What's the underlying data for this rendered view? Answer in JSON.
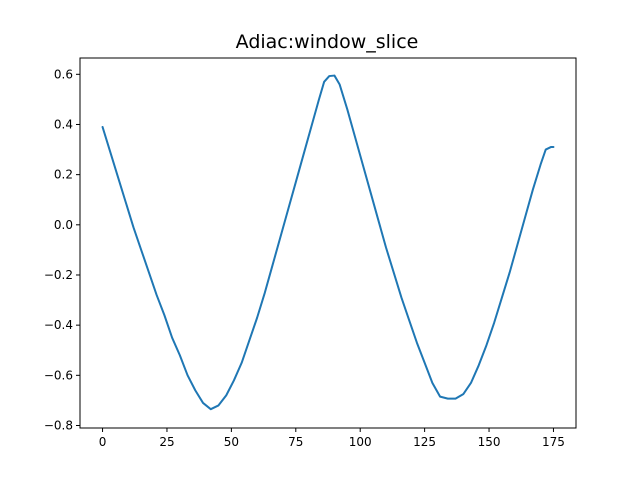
{
  "chart_data": {
    "type": "line",
    "title": "Adiac:window_slice",
    "xlabel": "",
    "ylabel": "",
    "xlim": [
      -8.75,
      183.75
    ],
    "ylim": [
      -0.81,
      0.665
    ],
    "grid": false,
    "x_ticks": [
      0,
      25,
      50,
      75,
      100,
      125,
      150,
      175
    ],
    "x_tick_labels": [
      "0",
      "25",
      "50",
      "75",
      "100",
      "125",
      "150",
      "175"
    ],
    "y_ticks": [
      -0.8,
      -0.6,
      -0.4,
      -0.2,
      0.0,
      0.2,
      0.4,
      0.6
    ],
    "y_tick_labels": [
      "−0.8",
      "−0.6",
      "−0.4",
      "−0.2",
      "0.0",
      "0.2",
      "0.4",
      "0.6"
    ],
    "series": [
      {
        "color": "#1f77b4",
        "points": [
          [
            0,
            0.39
          ],
          [
            3,
            0.29
          ],
          [
            6,
            0.19
          ],
          [
            9,
            0.09
          ],
          [
            12,
            -0.01
          ],
          [
            15,
            -0.1
          ],
          [
            18,
            -0.19
          ],
          [
            21,
            -0.28
          ],
          [
            24,
            -0.36
          ],
          [
            27,
            -0.45
          ],
          [
            30,
            -0.52
          ],
          [
            33,
            -0.6
          ],
          [
            36,
            -0.66
          ],
          [
            39,
            -0.71
          ],
          [
            42,
            -0.735
          ],
          [
            45,
            -0.72
          ],
          [
            48,
            -0.68
          ],
          [
            51,
            -0.62
          ],
          [
            54,
            -0.55
          ],
          [
            57,
            -0.46
          ],
          [
            60,
            -0.37
          ],
          [
            63,
            -0.27
          ],
          [
            66,
            -0.16
          ],
          [
            69,
            -0.05
          ],
          [
            72,
            0.06
          ],
          [
            75,
            0.17
          ],
          [
            78,
            0.28
          ],
          [
            81,
            0.39
          ],
          [
            84,
            0.5
          ],
          [
            86,
            0.57
          ],
          [
            88,
            0.593
          ],
          [
            90,
            0.595
          ],
          [
            92,
            0.56
          ],
          [
            95,
            0.46
          ],
          [
            98,
            0.35
          ],
          [
            101,
            0.24
          ],
          [
            104,
            0.13
          ],
          [
            107,
            0.02
          ],
          [
            110,
            -0.09
          ],
          [
            113,
            -0.19
          ],
          [
            116,
            -0.29
          ],
          [
            119,
            -0.38
          ],
          [
            122,
            -0.47
          ],
          [
            125,
            -0.55
          ],
          [
            128,
            -0.63
          ],
          [
            131,
            -0.685
          ],
          [
            134,
            -0.693
          ],
          [
            137,
            -0.693
          ],
          [
            140,
            -0.675
          ],
          [
            143,
            -0.63
          ],
          [
            146,
            -0.56
          ],
          [
            149,
            -0.48
          ],
          [
            152,
            -0.39
          ],
          [
            155,
            -0.29
          ],
          [
            158,
            -0.19
          ],
          [
            161,
            -0.08
          ],
          [
            164,
            0.03
          ],
          [
            167,
            0.14
          ],
          [
            170,
            0.24
          ],
          [
            172,
            0.3
          ],
          [
            174,
            0.31
          ],
          [
            175,
            0.31
          ]
        ]
      }
    ]
  }
}
